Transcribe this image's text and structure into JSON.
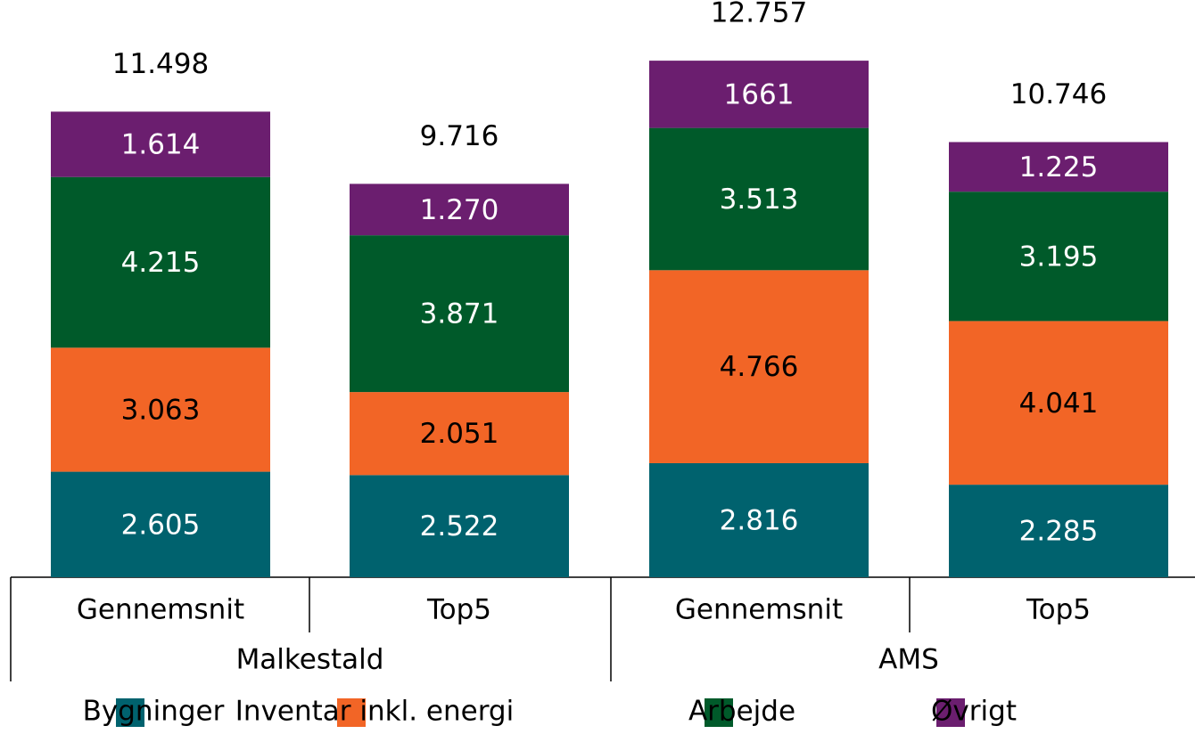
{
  "chart_data": {
    "type": "stacked_bar",
    "categories": [
      "Gennemsnit",
      "Top5",
      "Gennemsnit",
      "Top5"
    ],
    "groups": [
      "Malkestald",
      "AMS"
    ],
    "series": [
      {
        "name": "Bygninger",
        "color": "#00626e",
        "label_color": "#ffffff",
        "values": [
          2605,
          2522,
          2816,
          2285
        ],
        "value_labels": [
          "2.605",
          "2.522",
          "2.816",
          "2.285"
        ]
      },
      {
        "name": "Inventar inkl. energi",
        "color": "#f26526",
        "label_color": "#000000",
        "values": [
          3063,
          2051,
          4766,
          4041
        ],
        "value_labels": [
          "3.063",
          "2.051",
          "4.766",
          "4.041"
        ]
      },
      {
        "name": "Arbejde",
        "color": "#005a2a",
        "label_color": "#ffffff",
        "values": [
          4215,
          3871,
          3513,
          3195
        ],
        "value_labels": [
          "4.215",
          "3.871",
          "3.513",
          "3.195"
        ]
      },
      {
        "name": "Øvrigt",
        "color": "#6b1e6f",
        "label_color": "#ffffff",
        "values": [
          1614,
          1270,
          1661,
          1225
        ],
        "value_labels": [
          "1.614",
          "1.270",
          "1661",
          "1.225"
        ]
      }
    ],
    "totals": {
      "values": [
        11498,
        9716,
        12757,
        10746
      ],
      "labels": [
        "11.498",
        "9.716",
        "12.757",
        "10.746"
      ]
    },
    "legend": "bottom"
  }
}
